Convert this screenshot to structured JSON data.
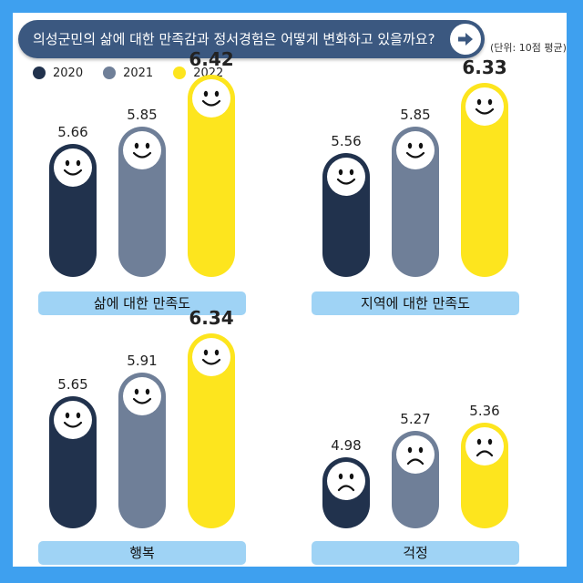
{
  "header": {
    "title": "의성군민의 삶에 대한 만족감과 정서경험은 어떻게 변화하고 있을까요?",
    "unit": "(단위: 10점 평균)"
  },
  "colors": {
    "2020": "#21324d",
    "2021": "#6f7f98",
    "2022": "#fde51e",
    "label_bg": "#9fd3f5",
    "background": "#3ea0ef",
    "header_bg": "#3b5880"
  },
  "legend": [
    {
      "label": "2020",
      "color": "#21324d"
    },
    {
      "label": "2021",
      "color": "#6f7f98"
    },
    {
      "label": "2022",
      "color": "#fde51e"
    }
  ],
  "chart_data": [
    {
      "type": "bar",
      "title": "삶에 대한 만족도",
      "categories": [
        "2020",
        "2021",
        "2022"
      ],
      "values": [
        5.66,
        5.85,
        6.42
      ],
      "labels": [
        "5.66",
        "5.85",
        "6.42"
      ],
      "faces": [
        "smile",
        "smile",
        "smile"
      ]
    },
    {
      "type": "bar",
      "title": "지역에 대한 만족도",
      "categories": [
        "2020",
        "2021",
        "2022"
      ],
      "values": [
        5.56,
        5.85,
        6.33
      ],
      "labels": [
        "5.56",
        "5.85",
        "6.33"
      ],
      "faces": [
        "smile",
        "smile",
        "smile"
      ]
    },
    {
      "type": "bar",
      "title": "행복",
      "categories": [
        "2020",
        "2021",
        "2022"
      ],
      "values": [
        5.65,
        5.91,
        6.34
      ],
      "labels": [
        "5.65",
        "5.91",
        "6.34"
      ],
      "faces": [
        "smile",
        "smile",
        "smile"
      ]
    },
    {
      "type": "bar",
      "title": "걱정",
      "categories": [
        "2020",
        "2021",
        "2022"
      ],
      "values": [
        4.98,
        5.27,
        5.36
      ],
      "labels": [
        "4.98",
        "5.27",
        "5.36"
      ],
      "faces": [
        "frown",
        "frown",
        "frown"
      ]
    }
  ]
}
